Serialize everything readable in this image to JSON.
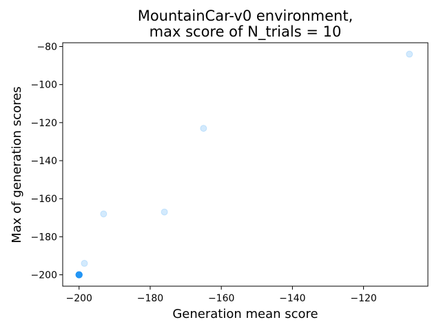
{
  "chart_data": {
    "type": "scatter",
    "title_lines": [
      "MountainCar-v0 environment,",
      "max score of N_trials = 10"
    ],
    "xlabel": "Generation mean score",
    "ylabel": "Max of generation scores",
    "xlim": [
      -204.6,
      -101.9
    ],
    "ylim": [
      -206,
      -78
    ],
    "xticks": [
      -200,
      -180,
      -160,
      -140,
      -120
    ],
    "yticks": [
      -200,
      -180,
      -160,
      -140,
      -120,
      -100,
      -80
    ],
    "xtick_labels": [
      "−200",
      "−180",
      "−160",
      "−140",
      "−120"
    ],
    "ytick_labels": [
      "−200",
      "−180",
      "−160",
      "−140",
      "−120",
      "−100",
      "−80"
    ],
    "grid": false,
    "point_color": "#2196f3",
    "point_alpha": 0.2,
    "points": [
      {
        "x": -200,
        "y": -200
      },
      {
        "x": -200,
        "y": -200
      },
      {
        "x": -200,
        "y": -200
      },
      {
        "x": -200,
        "y": -200
      },
      {
        "x": -200,
        "y": -200
      },
      {
        "x": -200,
        "y": -200
      },
      {
        "x": -200,
        "y": -200
      },
      {
        "x": -200,
        "y": -200
      },
      {
        "x": -200,
        "y": -200
      },
      {
        "x": -200,
        "y": -200
      },
      {
        "x": -200,
        "y": -200
      },
      {
        "x": -200,
        "y": -200
      },
      {
        "x": -200,
        "y": -200
      },
      {
        "x": -200,
        "y": -200
      },
      {
        "x": -200,
        "y": -200
      },
      {
        "x": -200,
        "y": -200
      },
      {
        "x": -200,
        "y": -200
      },
      {
        "x": -200,
        "y": -200
      },
      {
        "x": -200,
        "y": -200
      },
      {
        "x": -200,
        "y": -200
      },
      {
        "x": -200,
        "y": -200
      },
      {
        "x": -200,
        "y": -200
      },
      {
        "x": -200,
        "y": -200
      },
      {
        "x": -200,
        "y": -200
      },
      {
        "x": -200,
        "y": -200
      },
      {
        "x": -198.5,
        "y": -194
      },
      {
        "x": -193.1,
        "y": -168
      },
      {
        "x": -176.0,
        "y": -167
      },
      {
        "x": -165.0,
        "y": -123
      },
      {
        "x": -107.1,
        "y": -84
      }
    ]
  }
}
